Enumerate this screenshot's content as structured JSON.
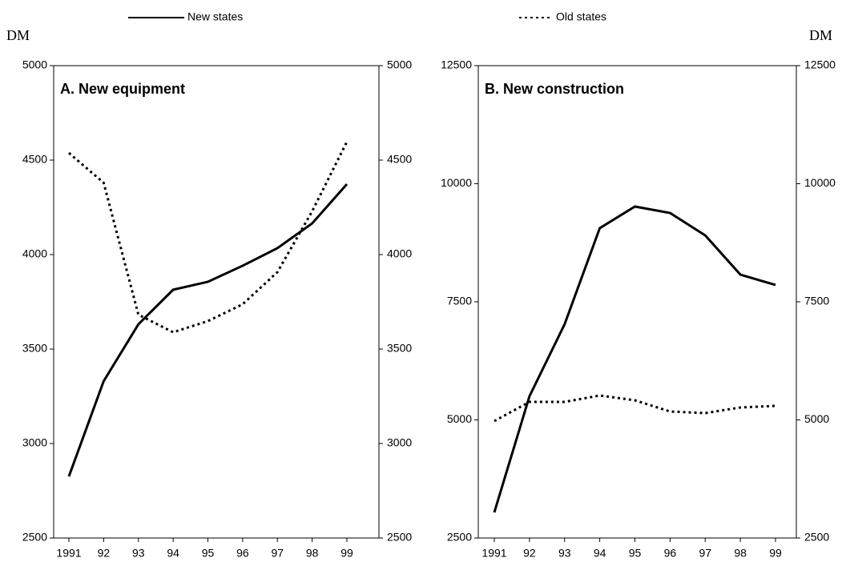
{
  "chart_data": [
    {
      "type": "line",
      "title": "A. New equipment",
      "ylabel": "DM",
      "categories": [
        "1991",
        "92",
        "93",
        "94",
        "95",
        "96",
        "97",
        "98",
        "99"
      ],
      "series": [
        {
          "name": "New states",
          "color": "#000000",
          "dash": "solid",
          "values": [
            2826,
            3330,
            3631,
            3814,
            3856,
            3941,
            4034,
            4165,
            4373
          ]
        },
        {
          "name": "Old states",
          "color": "#000000",
          "dash": "dotted",
          "values": [
            4538,
            4380,
            3682,
            3589,
            3648,
            3737,
            3907,
            4229,
            4597
          ]
        }
      ],
      "ylim": [
        2500,
        5000
      ],
      "yticks": [
        2500,
        3000,
        3500,
        4000,
        4500,
        5000
      ],
      "y2lim": [
        2500,
        5000
      ],
      "y2ticks": [
        2500,
        3000,
        3500,
        4000,
        4500,
        5000
      ]
    },
    {
      "type": "line",
      "title": "B. New construction",
      "ylabel": "DM",
      "categories": [
        "1991",
        "92",
        "93",
        "94",
        "95",
        "96",
        "97",
        "98",
        "99"
      ],
      "series": [
        {
          "color": "#000000",
          "dash": "solid",
          "values": [
            3042,
            5500,
            7025,
            9059,
            9517,
            9381,
            8907,
            8076,
            7856
          ]
        },
        {
          "color": "#000000",
          "dash": "dotted",
          "values": [
            4975,
            5381,
            5381,
            5517,
            5415,
            5178,
            5144,
            5263,
            5297
          ]
        }
      ],
      "ylim": [
        2500,
        12500
      ],
      "yticks": [
        2500,
        5000,
        7500,
        10000,
        12500
      ],
      "y2lim": [
        2500,
        12500
      ],
      "y2ticks": [
        2500,
        5000,
        7500,
        10000,
        12500
      ]
    }
  ]
}
